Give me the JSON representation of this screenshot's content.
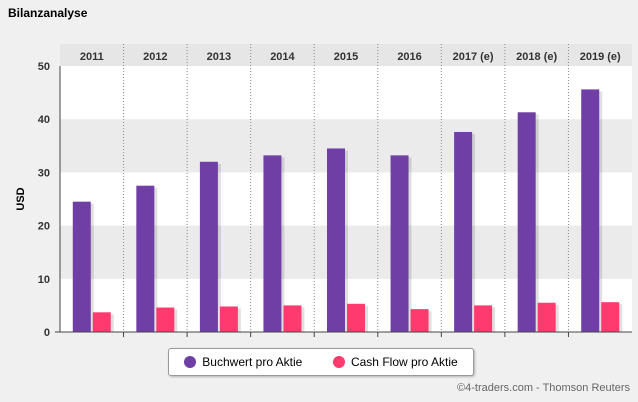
{
  "title": "Bilanzanalyse",
  "credit": "©4-traders.com - Thomson Reuters",
  "colors": {
    "buchwert": "#6f3fa6",
    "cashflow": "#ff3a6e",
    "band_dark": "#ebebeb",
    "band_light": "#ffffff",
    "header_bg": "#e6e6e6"
  },
  "chart_data": {
    "type": "bar",
    "title": "Bilanzanalyse",
    "xlabel": "",
    "ylabel": "USD",
    "ylim": [
      0,
      50
    ],
    "yticks": [
      0,
      10,
      20,
      30,
      40,
      50
    ],
    "categories": [
      "2011",
      "2012",
      "2013",
      "2014",
      "2015",
      "2016",
      "2017 (e)",
      "2018 (e)",
      "2019 (e)"
    ],
    "series": [
      {
        "name": "Buchwert pro Aktie",
        "values": [
          24.5,
          27.5,
          32.0,
          33.2,
          34.5,
          33.2,
          37.6,
          41.3,
          45.6
        ]
      },
      {
        "name": "Cash Flow pro Aktie",
        "values": [
          3.7,
          4.6,
          4.8,
          5.0,
          5.3,
          4.3,
          5.0,
          5.5,
          5.6
        ]
      }
    ],
    "legend_position": "bottom"
  }
}
